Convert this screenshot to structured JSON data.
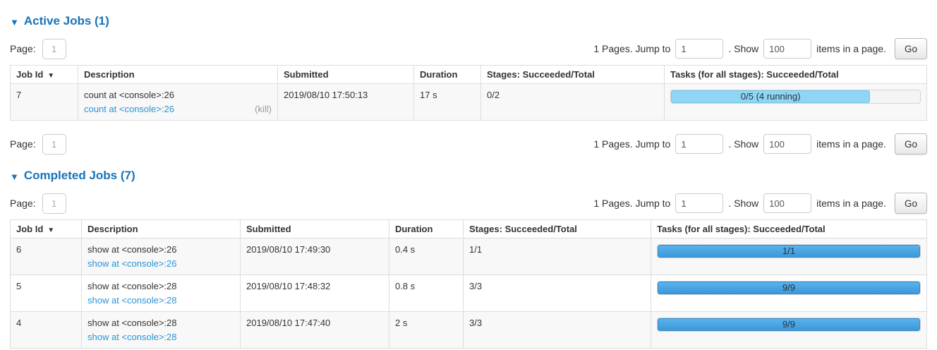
{
  "colors": {
    "title_blue": "#1673b9",
    "link_blue": "#2b94d4",
    "bar_completed_top": "#58b2ec",
    "bar_completed_bottom": "#3d98d9",
    "bar_completed_border": "#3589c8",
    "bar_running_fill": "#8ed6f3",
    "bar_running_border": "#79c5e8",
    "bar_track": "#f4f4f6"
  },
  "active_jobs": {
    "collapse_arrow": "▼",
    "title": "Active Jobs (1)",
    "pagination_top": {
      "page_label": "Page:",
      "page_value": "1",
      "pages_text": "1 Pages. Jump to",
      "jump_value": "1",
      "show_text": ". Show",
      "show_value": "100",
      "items_text": "items in a page.",
      "go_label": "Go"
    },
    "pagination_bottom": {
      "page_label": "Page:",
      "page_value": "1",
      "pages_text": "1 Pages. Jump to",
      "jump_value": "1",
      "show_text": ". Show",
      "show_value": "100",
      "items_text": "items in a page.",
      "go_label": "Go"
    },
    "table": {
      "columns": {
        "job_id": "Job Id",
        "sort_arrow": "▼",
        "description": "Description",
        "submitted": "Submitted",
        "duration": "Duration",
        "stages": "Stages: Succeeded/Total",
        "tasks": "Tasks (for all stages): Succeeded/Total"
      },
      "rows": [
        {
          "job_id": "7",
          "description": "count at <console>:26",
          "description_link": "count at <console>:26",
          "kill_label": "(kill)",
          "submitted": "2019/08/10 17:50:13",
          "duration": "17 s",
          "stages": "0/2",
          "tasks_label": "0/5 (4 running)",
          "tasks_percent": 80,
          "tasks_state": "running"
        }
      ]
    }
  },
  "completed_jobs": {
    "collapse_arrow": "▼",
    "title": "Completed Jobs (7)",
    "pagination_top": {
      "page_label": "Page:",
      "page_value": "1",
      "pages_text": "1 Pages. Jump to",
      "jump_value": "1",
      "show_text": ". Show",
      "show_value": "100",
      "items_text": "items in a page.",
      "go_label": "Go"
    },
    "table": {
      "columns": {
        "job_id": "Job Id",
        "sort_arrow": "▼",
        "description": "Description",
        "submitted": "Submitted",
        "duration": "Duration",
        "stages": "Stages: Succeeded/Total",
        "tasks": "Tasks (for all stages): Succeeded/Total"
      },
      "rows": [
        {
          "job_id": "6",
          "description": "show at <console>:26",
          "description_link": "show at <console>:26",
          "submitted": "2019/08/10 17:49:30",
          "duration": "0.4 s",
          "stages": "1/1",
          "tasks_label": "1/1",
          "tasks_percent": 100,
          "tasks_state": "completed"
        },
        {
          "job_id": "5",
          "description": "show at <console>:28",
          "description_link": "show at <console>:28",
          "submitted": "2019/08/10 17:48:32",
          "duration": "0.8 s",
          "stages": "3/3",
          "tasks_label": "9/9",
          "tasks_percent": 100,
          "tasks_state": "completed"
        },
        {
          "job_id": "4",
          "description": "show at <console>:28",
          "description_link": "show at <console>:28",
          "submitted": "2019/08/10 17:47:40",
          "duration": "2 s",
          "stages": "3/3",
          "tasks_label": "9/9",
          "tasks_percent": 100,
          "tasks_state": "completed"
        }
      ]
    }
  }
}
